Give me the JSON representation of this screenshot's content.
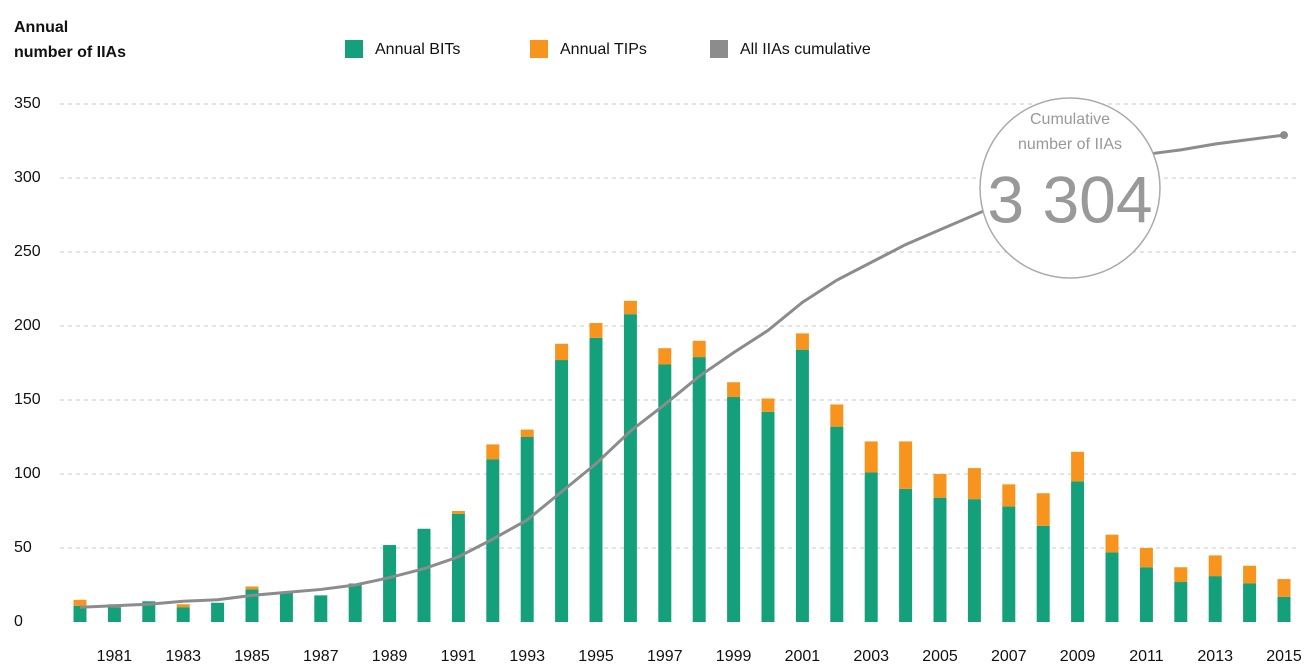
{
  "chart_data": {
    "type": "bar",
    "y_label": [
      "Annual",
      "number of IIAs"
    ],
    "categories": [
      null,
      "1981",
      null,
      "1983",
      null,
      "1985",
      null,
      "1987",
      null,
      "1989",
      null,
      "1991",
      null,
      "1993",
      null,
      "1995",
      null,
      "1997",
      null,
      "1999",
      null,
      "2001",
      null,
      "2003",
      null,
      "2005",
      null,
      "2007",
      null,
      "2009",
      null,
      "2011",
      null,
      "2013",
      null,
      "2015"
    ],
    "series": [
      {
        "name": "Annual BITs",
        "color": "#13a07a",
        "values": [
          11,
          10,
          14,
          10,
          13,
          22,
          20,
          18,
          26,
          52,
          63,
          73,
          110,
          125,
          177,
          192,
          208,
          174,
          179,
          152,
          142,
          184,
          132,
          101,
          90,
          84,
          83,
          78,
          65,
          95,
          47,
          37,
          27,
          31,
          26,
          17
        ]
      },
      {
        "name": "Annual TIPs",
        "color": "#f7941d",
        "values": [
          4,
          2,
          0,
          2,
          0,
          2,
          0,
          0,
          0,
          0,
          0,
          2,
          10,
          5,
          11,
          10,
          9,
          11,
          11,
          10,
          9,
          11,
          15,
          21,
          32,
          16,
          21,
          15,
          22,
          20,
          12,
          13,
          10,
          14,
          12,
          12
        ]
      },
      {
        "name": "All IIAs cumulative",
        "type": "line",
        "color": "#8c8c8c",
        "values": [
          10,
          11,
          12,
          14,
          15,
          18,
          20,
          22,
          25,
          30,
          36,
          44,
          56,
          69,
          88,
          107,
          129,
          147,
          166,
          182,
          197,
          216,
          231,
          243,
          255,
          265,
          275,
          285,
          294,
          305,
          311,
          316,
          319,
          323,
          326,
          329
        ]
      }
    ],
    "ylim": [
      0,
      350
    ],
    "yticks": [
      0,
      50,
      100,
      150,
      200,
      250,
      300,
      350
    ],
    "grid": true,
    "annotation": {
      "label": [
        "Cumulative",
        "number of IIAs"
      ],
      "value": "3 304"
    }
  }
}
